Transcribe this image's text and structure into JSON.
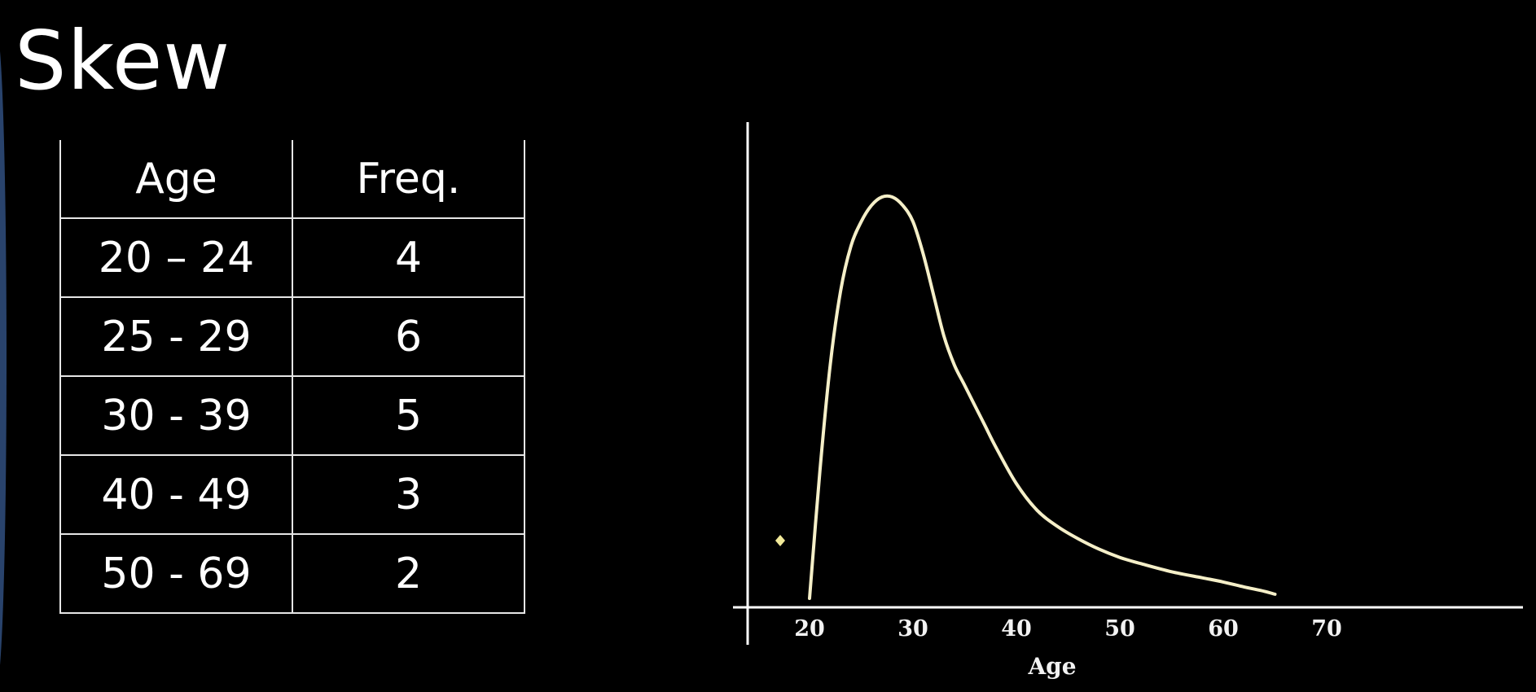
{
  "slide": {
    "title": "Skew"
  },
  "table": {
    "headers": [
      "Age",
      "Freq."
    ],
    "rows": [
      {
        "age": "20 – 24",
        "freq": "4"
      },
      {
        "age": "25 - 29",
        "freq": "6"
      },
      {
        "age": "30 - 39",
        "freq": "5"
      },
      {
        "age": "40 - 49",
        "freq": "3"
      },
      {
        "age": "50 - 69",
        "freq": "2"
      }
    ]
  },
  "chart_data": {
    "type": "line",
    "title": "",
    "xlabel": "Age",
    "ylabel": "",
    "x_ticks": [
      "20",
      "30",
      "40",
      "50",
      "60",
      "70"
    ],
    "xlim": [
      16,
      84
    ],
    "ylim": [
      0,
      1
    ],
    "grid": false,
    "curve": {
      "x": [
        20,
        21,
        22,
        23,
        24,
        25,
        26,
        27,
        28,
        29,
        30,
        31,
        32,
        33,
        34,
        35,
        36,
        37,
        38,
        40,
        42,
        44,
        46,
        48,
        50,
        52,
        55,
        58,
        60,
        62,
        64,
        65
      ],
      "y": [
        0.01,
        0.32,
        0.58,
        0.76,
        0.87,
        0.93,
        0.97,
        0.99,
        0.99,
        0.97,
        0.93,
        0.85,
        0.75,
        0.65,
        0.58,
        0.53,
        0.48,
        0.43,
        0.38,
        0.29,
        0.225,
        0.185,
        0.155,
        0.13,
        0.11,
        0.095,
        0.075,
        0.06,
        0.05,
        0.038,
        0.027,
        0.02
      ]
    },
    "colors": {
      "curve": "#f5efc8",
      "axes": "#ffffff",
      "marker": "#f2ea9a"
    }
  }
}
